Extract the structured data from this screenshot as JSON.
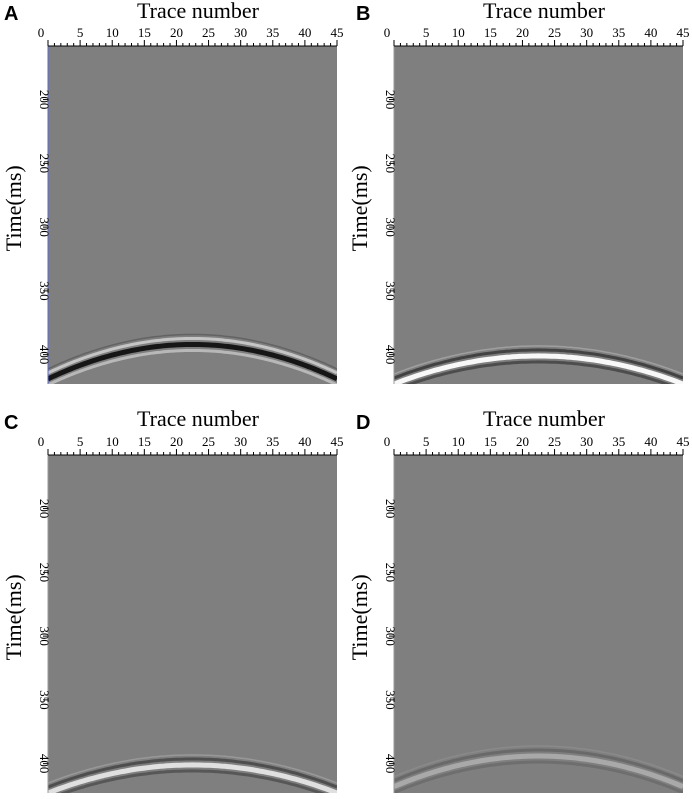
{
  "chart_data": [
    {
      "panel": "A",
      "type": "heatmap",
      "xlabel": "Trace number",
      "ylabel": "Time(ms)",
      "xticks": [
        0,
        5,
        10,
        15,
        20,
        25,
        30,
        35,
        40,
        45
      ],
      "yticks": [
        200,
        250,
        300,
        350,
        400
      ],
      "xlim": [
        0,
        45
      ],
      "ylim": [
        158,
        423
      ],
      "event": {
        "apex_trace": 22.5,
        "apex_time_ms": 392,
        "edge_time_ms": 419,
        "polarity": "dark",
        "amplitude": 1.0
      }
    },
    {
      "panel": "B",
      "type": "heatmap",
      "xlabel": "Trace number",
      "ylabel": "Time(ms)",
      "xticks": [
        0,
        5,
        10,
        15,
        20,
        25,
        30,
        35,
        40,
        45
      ],
      "yticks": [
        200,
        250,
        300,
        350,
        400
      ],
      "xlim": [
        0,
        45
      ],
      "ylim": [
        158,
        423
      ],
      "event": {
        "apex_trace": 22.5,
        "apex_time_ms": 401,
        "edge_time_ms": 423,
        "polarity": "bright",
        "amplitude": 1.0
      }
    },
    {
      "panel": "C",
      "type": "heatmap",
      "xlabel": "Trace number",
      "ylabel": "Time(ms)",
      "xticks": [
        0,
        5,
        10,
        15,
        20,
        25,
        30,
        35,
        40,
        45
      ],
      "yticks": [
        200,
        250,
        300,
        350,
        400
      ],
      "xlim": [
        0,
        45
      ],
      "ylim": [
        158,
        423
      ],
      "event": {
        "apex_trace": 22.5,
        "apex_time_ms": 401,
        "edge_time_ms": 423,
        "polarity": "bright",
        "amplitude": 0.8
      }
    },
    {
      "panel": "D",
      "type": "heatmap",
      "xlabel": "Trace number",
      "ylabel": "Time(ms)",
      "xticks": [
        0,
        5,
        10,
        15,
        20,
        25,
        30,
        35,
        40,
        45
      ],
      "yticks": [
        200,
        250,
        300,
        350,
        400
      ],
      "xlim": [
        0,
        45
      ],
      "ylim": [
        158,
        423
      ],
      "event": {
        "apex_trace": 22.5,
        "apex_time_ms": 394,
        "edge_time_ms": 418,
        "polarity": "bright",
        "amplitude": 0.35
      }
    }
  ],
  "colors": {
    "background": "#7f7f7f",
    "bright": "#ffffff",
    "dark": "#111111"
  }
}
